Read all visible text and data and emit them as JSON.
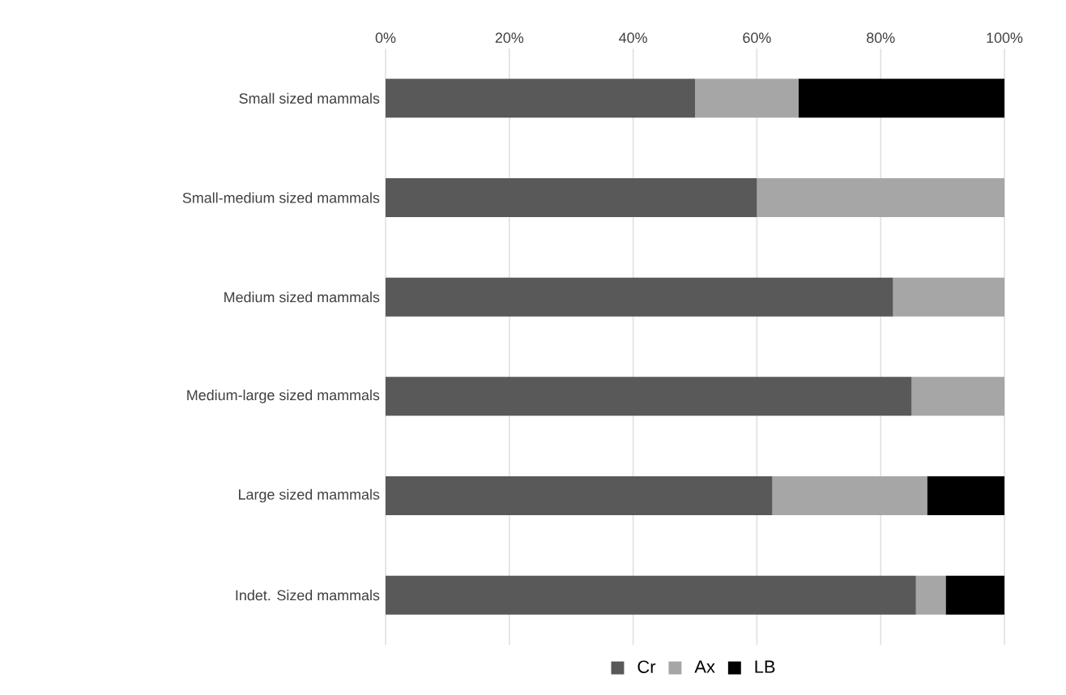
{
  "chart_data": {
    "type": "bar",
    "orientation": "horizontal",
    "stacked": true,
    "categories": [
      "Small sized mammals",
      "Small-medium sized mammals",
      "Medium sized mammals",
      "Medium-large sized mammals",
      "Large sized mammals",
      "Indet. Sized mammals"
    ],
    "series": [
      {
        "name": "Cr",
        "color": "#595959",
        "values": [
          50,
          60,
          82,
          85,
          62.5,
          85.7
        ]
      },
      {
        "name": "Ax",
        "color": "#a6a6a6",
        "values": [
          16.7,
          40,
          18,
          15,
          25,
          4.8
        ]
      },
      {
        "name": "LB",
        "color": "#000000",
        "values": [
          33.3,
          0,
          0,
          0,
          12.5,
          9.5
        ]
      }
    ],
    "xlim": [
      0,
      100
    ],
    "xticks": [
      {
        "value": 0,
        "label": "0%"
      },
      {
        "value": 20,
        "label": "20%"
      },
      {
        "value": 40,
        "label": "40%"
      },
      {
        "value": 60,
        "label": "60%"
      },
      {
        "value": 80,
        "label": "80%"
      },
      {
        "value": 100,
        "label": "100%"
      }
    ],
    "grid": "x",
    "legend": "bottom"
  }
}
